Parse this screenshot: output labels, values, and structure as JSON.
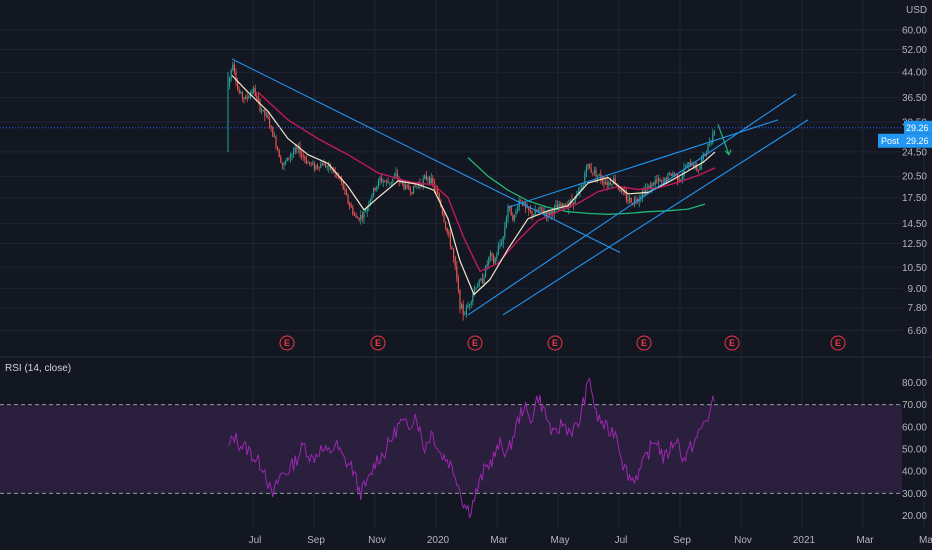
{
  "colors": {
    "background": "#131722",
    "grid": "#1f2433",
    "candle_up": "#26a69a",
    "candle_down": "#ef5350",
    "ma_short": "#f2e6c8",
    "ma_mid": "#c2185b",
    "ma_long": "#22b573",
    "trendline": "#2196f3",
    "rsi_line": "#9c27b0",
    "rsi_band": "#2a1f3d",
    "price_line": "#2962ff",
    "earnings": "#f23645"
  },
  "currency": "USD",
  "rsi_label": "RSI (14, close)",
  "price_badges": [
    {
      "label": "Post",
      "value": "29.26"
    },
    {
      "label": "",
      "value": "29.26"
    }
  ],
  "chart_data": [
    {
      "type": "candlestick",
      "scale": "log",
      "ylim": [
        6.2,
        60.0
      ],
      "y_ticks": [
        "60.00",
        "52.00",
        "44.00",
        "36.50",
        "30.50",
        "24.50",
        "20.50",
        "17.50",
        "14.50",
        "12.50",
        "10.50",
        "9.00",
        "7.80",
        "6.60"
      ],
      "y_tick_values": [
        60.0,
        52.0,
        44.0,
        36.5,
        30.5,
        24.5,
        20.5,
        17.5,
        14.5,
        12.5,
        10.5,
        9.0,
        7.8,
        6.6
      ],
      "x_ticks": [
        "Jul",
        "Sep",
        "Nov",
        "2020",
        "Mar",
        "May",
        "Jul",
        "Sep",
        "Nov",
        "2021",
        "Mar",
        "Ma"
      ],
      "x_tick_values": [
        3,
        64,
        125,
        186,
        247,
        308,
        369,
        430,
        491,
        552,
        613,
        674
      ],
      "price_path": [
        [
          0,
          40
        ],
        [
          5,
          48
        ],
        [
          10,
          38
        ],
        [
          18,
          36
        ],
        [
          25,
          39
        ],
        [
          32,
          34
        ],
        [
          40,
          31
        ],
        [
          48,
          26
        ],
        [
          55,
          22
        ],
        [
          62,
          24
        ],
        [
          70,
          25
        ],
        [
          78,
          23
        ],
        [
          86,
          22
        ],
        [
          95,
          22.5
        ],
        [
          104,
          21.5
        ],
        [
          112,
          20
        ],
        [
          120,
          17
        ],
        [
          128,
          15
        ],
        [
          136,
          15.5
        ],
        [
          144,
          18
        ],
        [
          152,
          20
        ],
        [
          160,
          19.5
        ],
        [
          168,
          20.5
        ],
        [
          176,
          19
        ],
        [
          184,
          18.5
        ],
        [
          192,
          19.5
        ],
        [
          200,
          20.5
        ],
        [
          206,
          19
        ],
        [
          212,
          17
        ],
        [
          218,
          14
        ],
        [
          224,
          12
        ],
        [
          228,
          10
        ],
        [
          232,
          8
        ],
        [
          236,
          7.4
        ],
        [
          242,
          8.2
        ],
        [
          248,
          9.2
        ],
        [
          254,
          9.5
        ],
        [
          258,
          10.5
        ],
        [
          262,
          11.5
        ],
        [
          266,
          10.8
        ],
        [
          270,
          12
        ],
        [
          275,
          13
        ],
        [
          280,
          16.5
        ],
        [
          286,
          15
        ],
        [
          292,
          17.5
        ],
        [
          298,
          16
        ],
        [
          305,
          15.5
        ],
        [
          312,
          16
        ],
        [
          320,
          15.5
        ],
        [
          328,
          16.2
        ],
        [
          336,
          16.5
        ],
        [
          344,
          17
        ],
        [
          350,
          18
        ],
        [
          355,
          19
        ],
        [
          358,
          22.5
        ],
        [
          362,
          21.5
        ],
        [
          368,
          21
        ],
        [
          374,
          20
        ],
        [
          380,
          19.5
        ],
        [
          386,
          20
        ],
        [
          392,
          18.5
        ],
        [
          398,
          17.5
        ],
        [
          404,
          17
        ],
        [
          410,
          17.5
        ],
        [
          416,
          18.5
        ],
        [
          422,
          19
        ],
        [
          428,
          19.8
        ],
        [
          434,
          19.5
        ],
        [
          440,
          20.5
        ],
        [
          446,
          21
        ],
        [
          452,
          20
        ],
        [
          458,
          22
        ],
        [
          464,
          22.5
        ],
        [
          470,
          21.5
        ],
        [
          476,
          24
        ],
        [
          480,
          25.5
        ],
        [
          484,
          27.5
        ],
        [
          487,
          29.3
        ]
      ],
      "ma_short_path": [
        [
          4,
          43
        ],
        [
          20,
          38
        ],
        [
          40,
          33
        ],
        [
          60,
          27
        ],
        [
          80,
          24
        ],
        [
          100,
          22.5
        ],
        [
          120,
          19
        ],
        [
          136,
          16
        ],
        [
          150,
          17.5
        ],
        [
          170,
          19.8
        ],
        [
          190,
          19.3
        ],
        [
          206,
          18.5
        ],
        [
          220,
          15
        ],
        [
          232,
          11
        ],
        [
          246,
          8.6
        ],
        [
          262,
          9.6
        ],
        [
          280,
          12
        ],
        [
          300,
          15
        ],
        [
          320,
          15.9
        ],
        [
          340,
          16.5
        ],
        [
          360,
          19.5
        ],
        [
          380,
          20.3
        ],
        [
          400,
          18
        ],
        [
          420,
          18.2
        ],
        [
          440,
          19.6
        ],
        [
          460,
          21.3
        ],
        [
          476,
          22.8
        ],
        [
          487,
          24.5
        ]
      ],
      "ma_mid_path": [
        [
          30,
          38
        ],
        [
          60,
          31
        ],
        [
          90,
          27
        ],
        [
          120,
          24
        ],
        [
          150,
          21
        ],
        [
          180,
          19.7
        ],
        [
          206,
          19.2
        ],
        [
          220,
          17.5
        ],
        [
          236,
          13
        ],
        [
          252,
          10.2
        ],
        [
          270,
          10.8
        ],
        [
          290,
          12.8
        ],
        [
          310,
          14.8
        ],
        [
          330,
          15.8
        ],
        [
          350,
          16.8
        ],
        [
          370,
          18.3
        ],
        [
          390,
          19
        ],
        [
          410,
          18.6
        ],
        [
          430,
          18.8
        ],
        [
          450,
          19.6
        ],
        [
          470,
          20.6
        ],
        [
          487,
          21.8
        ]
      ],
      "ma_long_path": [
        [
          240,
          23.5
        ],
        [
          260,
          20.5
        ],
        [
          280,
          18.5
        ],
        [
          300,
          17.1
        ],
        [
          320,
          16.3
        ],
        [
          340,
          15.8
        ],
        [
          360,
          15.6
        ],
        [
          380,
          15.5
        ],
        [
          400,
          15.6
        ],
        [
          420,
          15.8
        ],
        [
          440,
          15.9
        ],
        [
          460,
          16.1
        ],
        [
          477,
          16.7
        ]
      ],
      "trendlines": [
        {
          "from": [
            4,
            48.5
          ],
          "to": [
            392,
            11.7
          ]
        },
        {
          "from": [
            240,
            7.4
          ],
          "to": [
            568,
            37.5
          ]
        },
        {
          "from": [
            275,
            7.4
          ],
          "to": [
            580,
            31.0
          ]
        },
        {
          "from": [
            280,
            16.3
          ],
          "to": [
            550,
            31.0
          ]
        }
      ],
      "ma_curve_extra": {
        "from": [
          240,
          23.5
        ],
        "to": [
          477,
          16.7
        ]
      },
      "arrow": {
        "from": [
          490,
          30.0
        ],
        "to": [
          501,
          24.0
        ]
      },
      "horizontal_price_line": 29.26,
      "earnings_markers": [
        55,
        146,
        243,
        323,
        412,
        500,
        606
      ],
      "earnings_label": "E"
    },
    {
      "type": "line",
      "name": "RSI (14, close)",
      "ylim": [
        16,
        88
      ],
      "y_ticks": [
        "80.00",
        "70.00",
        "60.00",
        "50.00",
        "40.00",
        "30.00",
        "20.00"
      ],
      "y_tick_values": [
        80,
        70,
        60,
        50,
        40,
        30,
        20
      ],
      "band": [
        30,
        70
      ],
      "values": [
        [
          0,
          50
        ],
        [
          6,
          56
        ],
        [
          12,
          52
        ],
        [
          20,
          50
        ],
        [
          28,
          45
        ],
        [
          36,
          42
        ],
        [
          44,
          28
        ],
        [
          52,
          38
        ],
        [
          60,
          40
        ],
        [
          68,
          45
        ],
        [
          76,
          52
        ],
        [
          84,
          45
        ],
        [
          92,
          50
        ],
        [
          100,
          48
        ],
        [
          108,
          52
        ],
        [
          116,
          45
        ],
        [
          124,
          42
        ],
        [
          132,
          30
        ],
        [
          140,
          35
        ],
        [
          148,
          45
        ],
        [
          156,
          48
        ],
        [
          164,
          55
        ],
        [
          172,
          62
        ],
        [
          180,
          60
        ],
        [
          188,
          66
        ],
        [
          196,
          50
        ],
        [
          204,
          58
        ],
        [
          212,
          48
        ],
        [
          220,
          45
        ],
        [
          228,
          38
        ],
        [
          236,
          25
        ],
        [
          242,
          22
        ],
        [
          248,
          30
        ],
        [
          256,
          40
        ],
        [
          264,
          45
        ],
        [
          272,
          52
        ],
        [
          280,
          48
        ],
        [
          288,
          60
        ],
        [
          296,
          70
        ],
        [
          302,
          62
        ],
        [
          310,
          74
        ],
        [
          318,
          65
        ],
        [
          326,
          55
        ],
        [
          334,
          62
        ],
        [
          342,
          58
        ],
        [
          350,
          60
        ],
        [
          356,
          72
        ],
        [
          362,
          82
        ],
        [
          368,
          65
        ],
        [
          374,
          62
        ],
        [
          380,
          58
        ],
        [
          388,
          58
        ],
        [
          396,
          42
        ],
        [
          404,
          36
        ],
        [
          412,
          40
        ],
        [
          420,
          48
        ],
        [
          428,
          55
        ],
        [
          436,
          45
        ],
        [
          442,
          50
        ],
        [
          448,
          55
        ],
        [
          456,
          45
        ],
        [
          462,
          50
        ],
        [
          470,
          56
        ],
        [
          476,
          62
        ],
        [
          481,
          65
        ],
        [
          487,
          74
        ]
      ]
    }
  ]
}
